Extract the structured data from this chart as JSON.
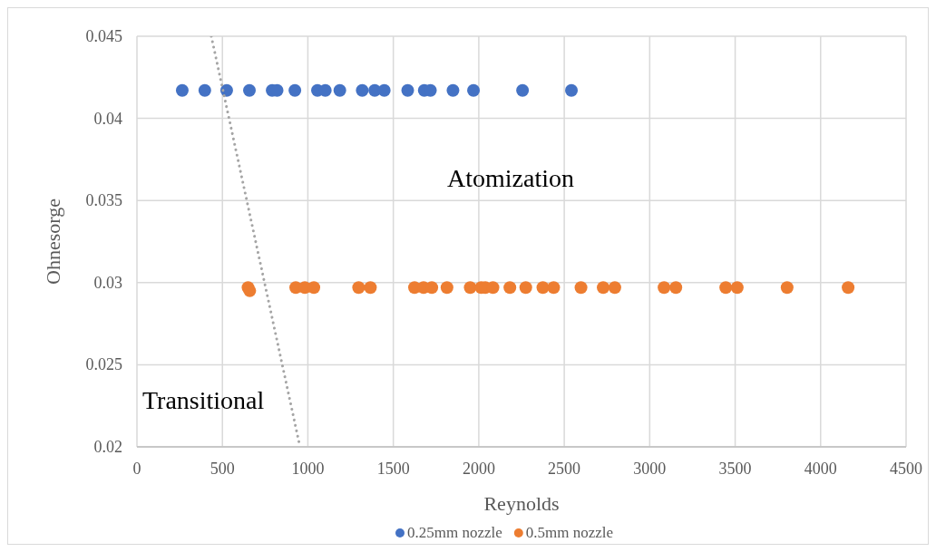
{
  "chart_data": {
    "type": "scatter",
    "xlabel": "Reynolds",
    "ylabel": "Ohnesorge",
    "xlim": [
      0,
      4500
    ],
    "xticks": [
      0,
      500,
      1000,
      1500,
      2000,
      2500,
      3000,
      3500,
      4000,
      4500
    ],
    "ylim": [
      0.02,
      0.045
    ],
    "yticks": [
      0.02,
      0.025,
      0.03,
      0.035,
      0.04,
      0.045
    ],
    "grid": true,
    "legend": "bottom",
    "marker": "circle",
    "annotations": [
      "Atomization",
      "Transitional"
    ],
    "series": [
      {
        "name": "0.25mm nozzle",
        "color": "#4472c4",
        "x": [
          265,
          397,
          525,
          658,
          791,
          820,
          924,
          1056,
          1102,
          1187,
          1318,
          1391,
          1447,
          1584,
          1681,
          1717,
          1849,
          1969,
          2256,
          2542
        ],
        "values": [
          0.0417,
          0.0417,
          0.0417,
          0.0417,
          0.0417,
          0.0417,
          0.0417,
          0.0417,
          0.0417,
          0.0417,
          0.0417,
          0.0417,
          0.0417,
          0.0417,
          0.0417,
          0.0417,
          0.0417,
          0.0417,
          0.0417,
          0.0417
        ]
      },
      {
        "name": "0.5mm nozzle",
        "color": "#ed7d31",
        "x": [
          650,
          660,
          929,
          982,
          1035,
          1297,
          1366,
          1624,
          1677,
          1725,
          1814,
          1950,
          2014,
          2038,
          2083,
          2182,
          2275,
          2375,
          2438,
          2598,
          2728,
          2796,
          3084,
          3153,
          3445,
          3512,
          3804,
          4161
        ],
        "values": [
          0.0297,
          0.0295,
          0.0297,
          0.0297,
          0.0297,
          0.0297,
          0.0297,
          0.0297,
          0.0297,
          0.0297,
          0.0297,
          0.0297,
          0.0297,
          0.0297,
          0.0297,
          0.0297,
          0.0297,
          0.0297,
          0.0297,
          0.0297,
          0.0297,
          0.0297,
          0.0297,
          0.0297,
          0.0297,
          0.0297,
          0.0297,
          0.0297
        ]
      },
      {
        "type": "line",
        "color": "#a5a5a5",
        "line_style": "dotted",
        "marker": "none",
        "x": [
          435,
          954
        ],
        "values": [
          0.045,
          0.02
        ]
      }
    ]
  }
}
